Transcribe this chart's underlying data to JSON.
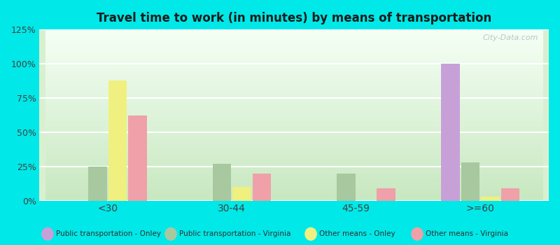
{
  "title": "Travel time to work (in minutes) by means of transportation",
  "categories": [
    "<30",
    "30-44",
    "45-59",
    ">=60"
  ],
  "series": {
    "Public transportation - Onley": [
      0,
      0,
      0,
      100
    ],
    "Public transportation - Virginia": [
      25,
      27,
      20,
      28
    ],
    "Other means - Onley": [
      88,
      10,
      0,
      3
    ],
    "Other means - Virginia": [
      62,
      20,
      9,
      9
    ]
  },
  "colors": {
    "Public transportation - Onley": "#c8a0d8",
    "Public transportation - Virginia": "#a8c8a0",
    "Other means - Onley": "#f0f080",
    "Other means - Virginia": "#f0a0a8"
  },
  "ylim": [
    0,
    125
  ],
  "yticks": [
    0,
    25,
    50,
    75,
    100,
    125
  ],
  "ytick_labels": [
    "0%",
    "25%",
    "50%",
    "75%",
    "100%",
    "125%"
  ],
  "background_color": "#00e8e8",
  "bar_width": 0.15,
  "watermark": "City-Data.com"
}
